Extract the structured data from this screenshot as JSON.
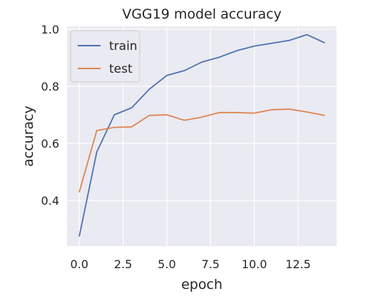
{
  "chart_data": {
    "type": "line",
    "title": "VGG19 model accuracy",
    "xlabel": "epoch",
    "ylabel": "accuracy",
    "xlim": [
      -0.7,
      14.7
    ],
    "ylim": [
      0.24,
      1.01
    ],
    "xticks": [
      0.0,
      2.5,
      5.0,
      7.5,
      10.0,
      12.5
    ],
    "xtick_labels": [
      "0.0",
      "2.5",
      "5.0",
      "7.5",
      "10.0",
      "12.5"
    ],
    "yticks": [
      0.4,
      0.6,
      0.8,
      1.0
    ],
    "ytick_labels": [
      "0.4",
      "0.6",
      "0.8",
      "1.0"
    ],
    "grid": true,
    "legend_position": "top-left",
    "x": [
      0,
      1,
      2,
      3,
      4,
      5,
      6,
      7,
      8,
      9,
      10,
      11,
      12,
      13,
      14
    ],
    "series": [
      {
        "name": "train",
        "color": "#4c72b0",
        "values": [
          0.275,
          0.57,
          0.7,
          0.725,
          0.79,
          0.838,
          0.855,
          0.885,
          0.902,
          0.925,
          0.941,
          0.951,
          0.961,
          0.981,
          0.953
        ]
      },
      {
        "name": "test",
        "color": "#dd8452",
        "values": [
          0.43,
          0.645,
          0.656,
          0.658,
          0.698,
          0.7,
          0.681,
          0.692,
          0.708,
          0.708,
          0.706,
          0.718,
          0.72,
          0.71,
          0.698
        ]
      }
    ]
  }
}
